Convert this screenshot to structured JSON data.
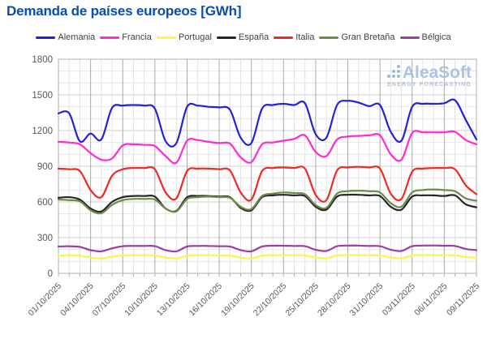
{
  "title": "Demanda de países europeos [GWh]",
  "watermark": {
    "name": "AleaSoft",
    "tagline": "ENERGY FORECASTING"
  },
  "colors": {
    "title": "#0b4dad",
    "axis_text": "#595959",
    "grid_minor": "#e7e7e7",
    "grid_major": "#a9a9a9",
    "plot_border": "#b0b0b0",
    "watermark": "#a7bddd"
  },
  "chart_data": {
    "type": "line",
    "title": "Demanda de países europeos [GWh]",
    "xlabel": "",
    "ylabel": "",
    "ylim": [
      0,
      1800
    ],
    "y_ticks": [
      0,
      300,
      600,
      900,
      1200,
      1500,
      1800
    ],
    "x_tick_every": 3,
    "grid": true,
    "legend_position": "top",
    "x": [
      "01/10/2025",
      "02/10/2025",
      "03/10/2025",
      "04/10/2025",
      "05/10/2025",
      "06/10/2025",
      "07/10/2025",
      "08/10/2025",
      "09/10/2025",
      "10/10/2025",
      "11/10/2025",
      "12/10/2025",
      "13/10/2025",
      "14/10/2025",
      "15/10/2025",
      "16/10/2025",
      "17/10/2025",
      "18/10/2025",
      "19/10/2025",
      "20/10/2025",
      "21/10/2025",
      "22/10/2025",
      "23/10/2025",
      "24/10/2025",
      "25/10/2025",
      "26/10/2025",
      "27/10/2025",
      "28/10/2025",
      "29/10/2025",
      "30/10/2025",
      "31/10/2025",
      "01/11/2025",
      "02/11/2025",
      "03/11/2025",
      "04/11/2025",
      "05/11/2025",
      "06/11/2025",
      "07/11/2025",
      "08/11/2025",
      "09/11/2025"
    ],
    "x_tick_labels": [
      "01/10/2025",
      "04/10/2025",
      "07/10/2025",
      "10/10/2025",
      "13/10/2025",
      "16/10/2025",
      "19/10/2025",
      "22/10/2025",
      "25/10/2025",
      "28/10/2025",
      "31/10/2025",
      "03/11/2025",
      "06/11/2025",
      "09/11/2025"
    ],
    "series": [
      {
        "name": "Alemania",
        "color": "#2222dd",
        "values": [
          1345,
          1345,
          1110,
          1175,
          1125,
          1390,
          1410,
          1415,
          1410,
          1385,
          1110,
          1095,
          1400,
          1410,
          1400,
          1395,
          1375,
          1140,
          1095,
          1385,
          1415,
          1425,
          1415,
          1430,
          1170,
          1140,
          1415,
          1450,
          1435,
          1405,
          1415,
          1190,
          1115,
          1400,
          1425,
          1425,
          1430,
          1455,
          1290,
          1125
        ]
      },
      {
        "name": "Francia",
        "color": "#ff2bd1",
        "values": [
          1105,
          1100,
          1085,
          1010,
          955,
          965,
          1075,
          1085,
          1080,
          1070,
          985,
          930,
          1115,
          1120,
          1105,
          1095,
          1090,
          975,
          935,
          1085,
          1100,
          1115,
          1130,
          1160,
          1020,
          985,
          1125,
          1150,
          1155,
          1160,
          1160,
          1000,
          955,
          1180,
          1185,
          1185,
          1185,
          1190,
          1120,
          1085
        ]
      },
      {
        "name": "Portugal",
        "color": "#fbf649",
        "values": [
          150,
          152,
          148,
          133,
          125,
          140,
          150,
          152,
          152,
          150,
          133,
          126,
          148,
          152,
          152,
          150,
          148,
          132,
          125,
          148,
          152,
          153,
          152,
          150,
          133,
          126,
          149,
          153,
          153,
          152,
          150,
          134,
          126,
          150,
          153,
          153,
          152,
          151,
          138,
          130
        ]
      },
      {
        "name": "España",
        "color": "#262626",
        "values": [
          635,
          640,
          620,
          545,
          520,
          600,
          640,
          650,
          650,
          645,
          545,
          525,
          640,
          650,
          650,
          645,
          640,
          550,
          530,
          640,
          655,
          660,
          655,
          650,
          560,
          535,
          645,
          660,
          660,
          655,
          650,
          560,
          535,
          645,
          655,
          655,
          650,
          655,
          580,
          555
        ]
      },
      {
        "name": "Italia",
        "color": "#ee2a24",
        "values": [
          880,
          875,
          860,
          700,
          640,
          820,
          875,
          885,
          885,
          875,
          680,
          630,
          860,
          880,
          880,
          875,
          865,
          680,
          620,
          860,
          885,
          890,
          885,
          880,
          660,
          615,
          865,
          890,
          895,
          890,
          880,
          670,
          625,
          855,
          880,
          885,
          885,
          875,
          740,
          665
        ]
      },
      {
        "name": "Gran Bretaña",
        "color": "#6d8b4a",
        "values": [
          620,
          615,
          605,
          530,
          505,
          575,
          615,
          625,
          625,
          620,
          545,
          520,
          625,
          640,
          645,
          640,
          635,
          560,
          540,
          650,
          670,
          680,
          675,
          665,
          575,
          550,
          670,
          690,
          695,
          690,
          680,
          590,
          560,
          680,
          700,
          705,
          700,
          690,
          630,
          610
        ]
      },
      {
        "name": "Bélgica",
        "color": "#9c3f9c",
        "values": [
          225,
          228,
          222,
          195,
          185,
          210,
          228,
          230,
          230,
          228,
          195,
          185,
          225,
          230,
          230,
          228,
          225,
          195,
          185,
          225,
          232,
          232,
          230,
          228,
          198,
          188,
          228,
          233,
          233,
          230,
          228,
          198,
          188,
          228,
          233,
          234,
          232,
          230,
          205,
          195
        ]
      }
    ]
  }
}
